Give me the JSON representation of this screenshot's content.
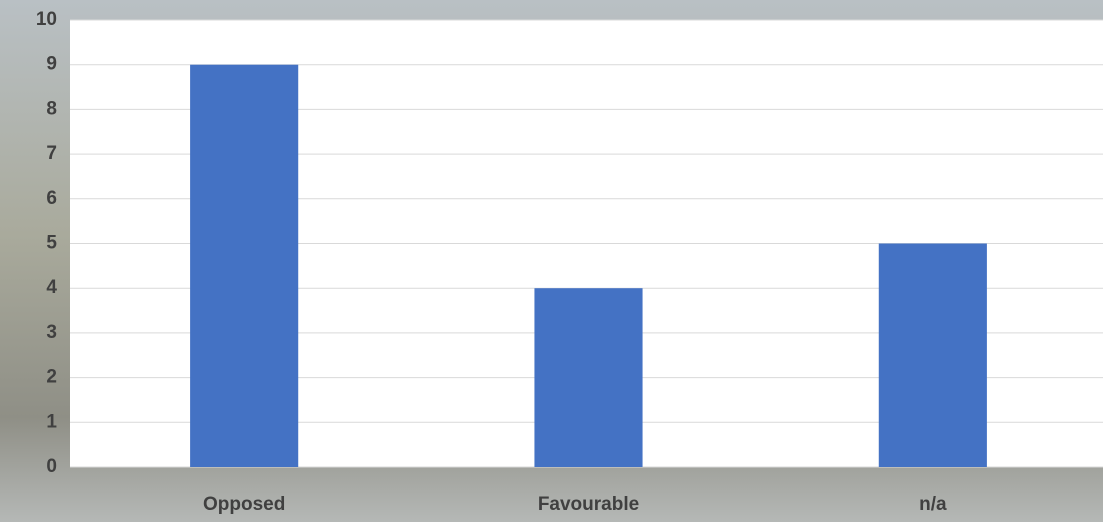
{
  "chart_data": {
    "type": "bar",
    "categories": [
      "Opposed",
      "Favourable",
      "n/a"
    ],
    "values": [
      9,
      4,
      5
    ],
    "color": "#4472c4",
    "ylim": [
      0,
      10
    ],
    "yticks": [
      0,
      1,
      2,
      3,
      4,
      5,
      6,
      7,
      8,
      9,
      10
    ],
    "grid": true
  }
}
